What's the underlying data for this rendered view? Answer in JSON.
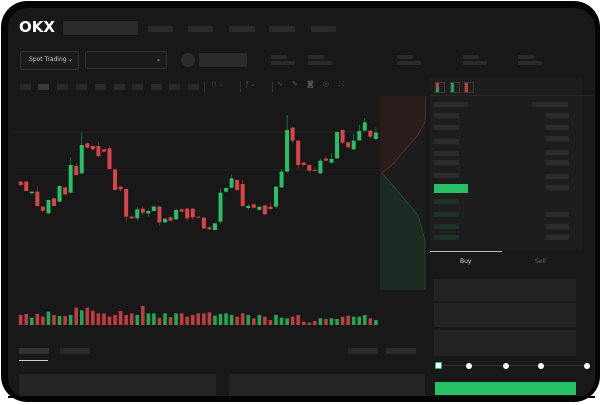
{
  "header": {
    "logo": "OKX"
  },
  "market": {
    "type_label": "Spot Trading"
  },
  "trade": {
    "tabs": [
      "Buy",
      "Sell"
    ]
  },
  "colors": {
    "up": "#25c164",
    "down": "#d9444b",
    "background": "#181818"
  },
  "chart_data": {
    "type": "candlestick",
    "candles": [
      [
        185,
        187,
        173,
        175
      ],
      [
        185,
        187,
        155,
        157
      ],
      [
        150,
        156,
        149,
        155
      ],
      [
        155,
        170,
        110,
        112
      ],
      [
        110,
        112,
        93,
        98
      ],
      [
        90,
        132,
        88,
        130
      ],
      [
        135,
        137,
        110,
        112
      ],
      [
        125,
        175,
        123,
        172
      ],
      [
        168,
        170,
        143,
        147
      ],
      [
        152,
        258,
        150,
        235
      ],
      [
        232,
        240,
        203,
        205
      ],
      [
        210,
        332,
        208,
        295
      ],
      [
        300,
        303,
        285,
        287
      ],
      [
        292,
        294,
        278,
        282
      ],
      [
        292,
        305,
        258,
        262
      ],
      [
        282,
        283,
        274,
        275
      ],
      [
        285,
        292,
        221,
        223
      ],
      [
        222,
        224,
        158,
        160
      ],
      [
        170,
        172,
        155,
        162
      ],
      [
        163,
        165,
        65,
        80
      ],
      [
        80,
        85,
        73,
        75
      ],
      [
        75,
        108,
        68,
        102
      ],
      [
        104,
        112,
        85,
        92
      ],
      [
        90,
        99,
        80,
        97
      ],
      [
        97,
        115,
        96,
        110
      ],
      [
        110,
        112,
        53,
        63
      ],
      [
        63,
        75,
        60,
        74
      ],
      [
        78,
        80,
        65,
        68
      ],
      [
        72,
        105,
        70,
        100
      ],
      [
        102,
        104,
        94,
        95
      ],
      [
        104,
        106,
        65,
        75
      ],
      [
        104,
        106,
        72,
        78
      ],
      [
        80,
        81,
        76,
        77
      ],
      [
        77,
        80,
        43,
        45
      ],
      [
        48,
        50,
        40,
        42
      ],
      [
        40,
        62,
        38,
        60
      ],
      [
        65,
        165,
        60,
        152
      ],
      [
        155,
        168,
        153,
        166
      ],
      [
        167,
        207,
        165,
        195
      ],
      [
        190,
        192,
        158,
        160
      ],
      [
        178,
        190,
        108,
        112
      ],
      [
        106,
        118,
        100,
        112
      ],
      [
        117,
        118,
        105,
        107
      ],
      [
        100,
        111,
        99,
        110
      ],
      [
        114,
        115,
        86,
        87
      ],
      [
        110,
        122,
        102,
        103
      ],
      [
        110,
        172,
        105,
        170
      ],
      [
        168,
        222,
        166,
        215
      ],
      [
        215,
        385,
        213,
        340
      ],
      [
        347,
        350,
        300,
        308
      ],
      [
        308,
        310,
        225,
        235
      ],
      [
        242,
        245,
        230,
        235
      ],
      [
        235,
        237,
        213,
        218
      ],
      [
        220,
        228,
        216,
        217
      ],
      [
        210,
        255,
        208,
        248
      ],
      [
        254,
        262,
        246,
        248
      ],
      [
        242,
        270,
        240,
        253
      ],
      [
        255,
        336,
        253,
        334
      ],
      [
        340,
        342,
        298,
        302
      ],
      [
        303,
        305,
        287,
        288
      ],
      [
        282,
        328,
        280,
        308
      ],
      [
        309,
        356,
        307,
        337
      ],
      [
        338,
        376,
        336,
        363
      ],
      [
        338,
        340,
        315,
        320
      ],
      [
        313,
        348,
        311,
        332
      ]
    ],
    "volumes": [
      30,
      33,
      22,
      33,
      25,
      40,
      30,
      27,
      27,
      30,
      52,
      44,
      52,
      43,
      35,
      35,
      25,
      30,
      42,
      30,
      35,
      30,
      57,
      35,
      35,
      22,
      35,
      24,
      35,
      35,
      25,
      30,
      35,
      35,
      38,
      28,
      33,
      35,
      30,
      25,
      35,
      30,
      20,
      30,
      25,
      15,
      30,
      22,
      20,
      25,
      30,
      10,
      7,
      12,
      20,
      18,
      20,
      18,
      25,
      28,
      25,
      25,
      30,
      20,
      15
    ],
    "slider_level_percent": 0
  }
}
